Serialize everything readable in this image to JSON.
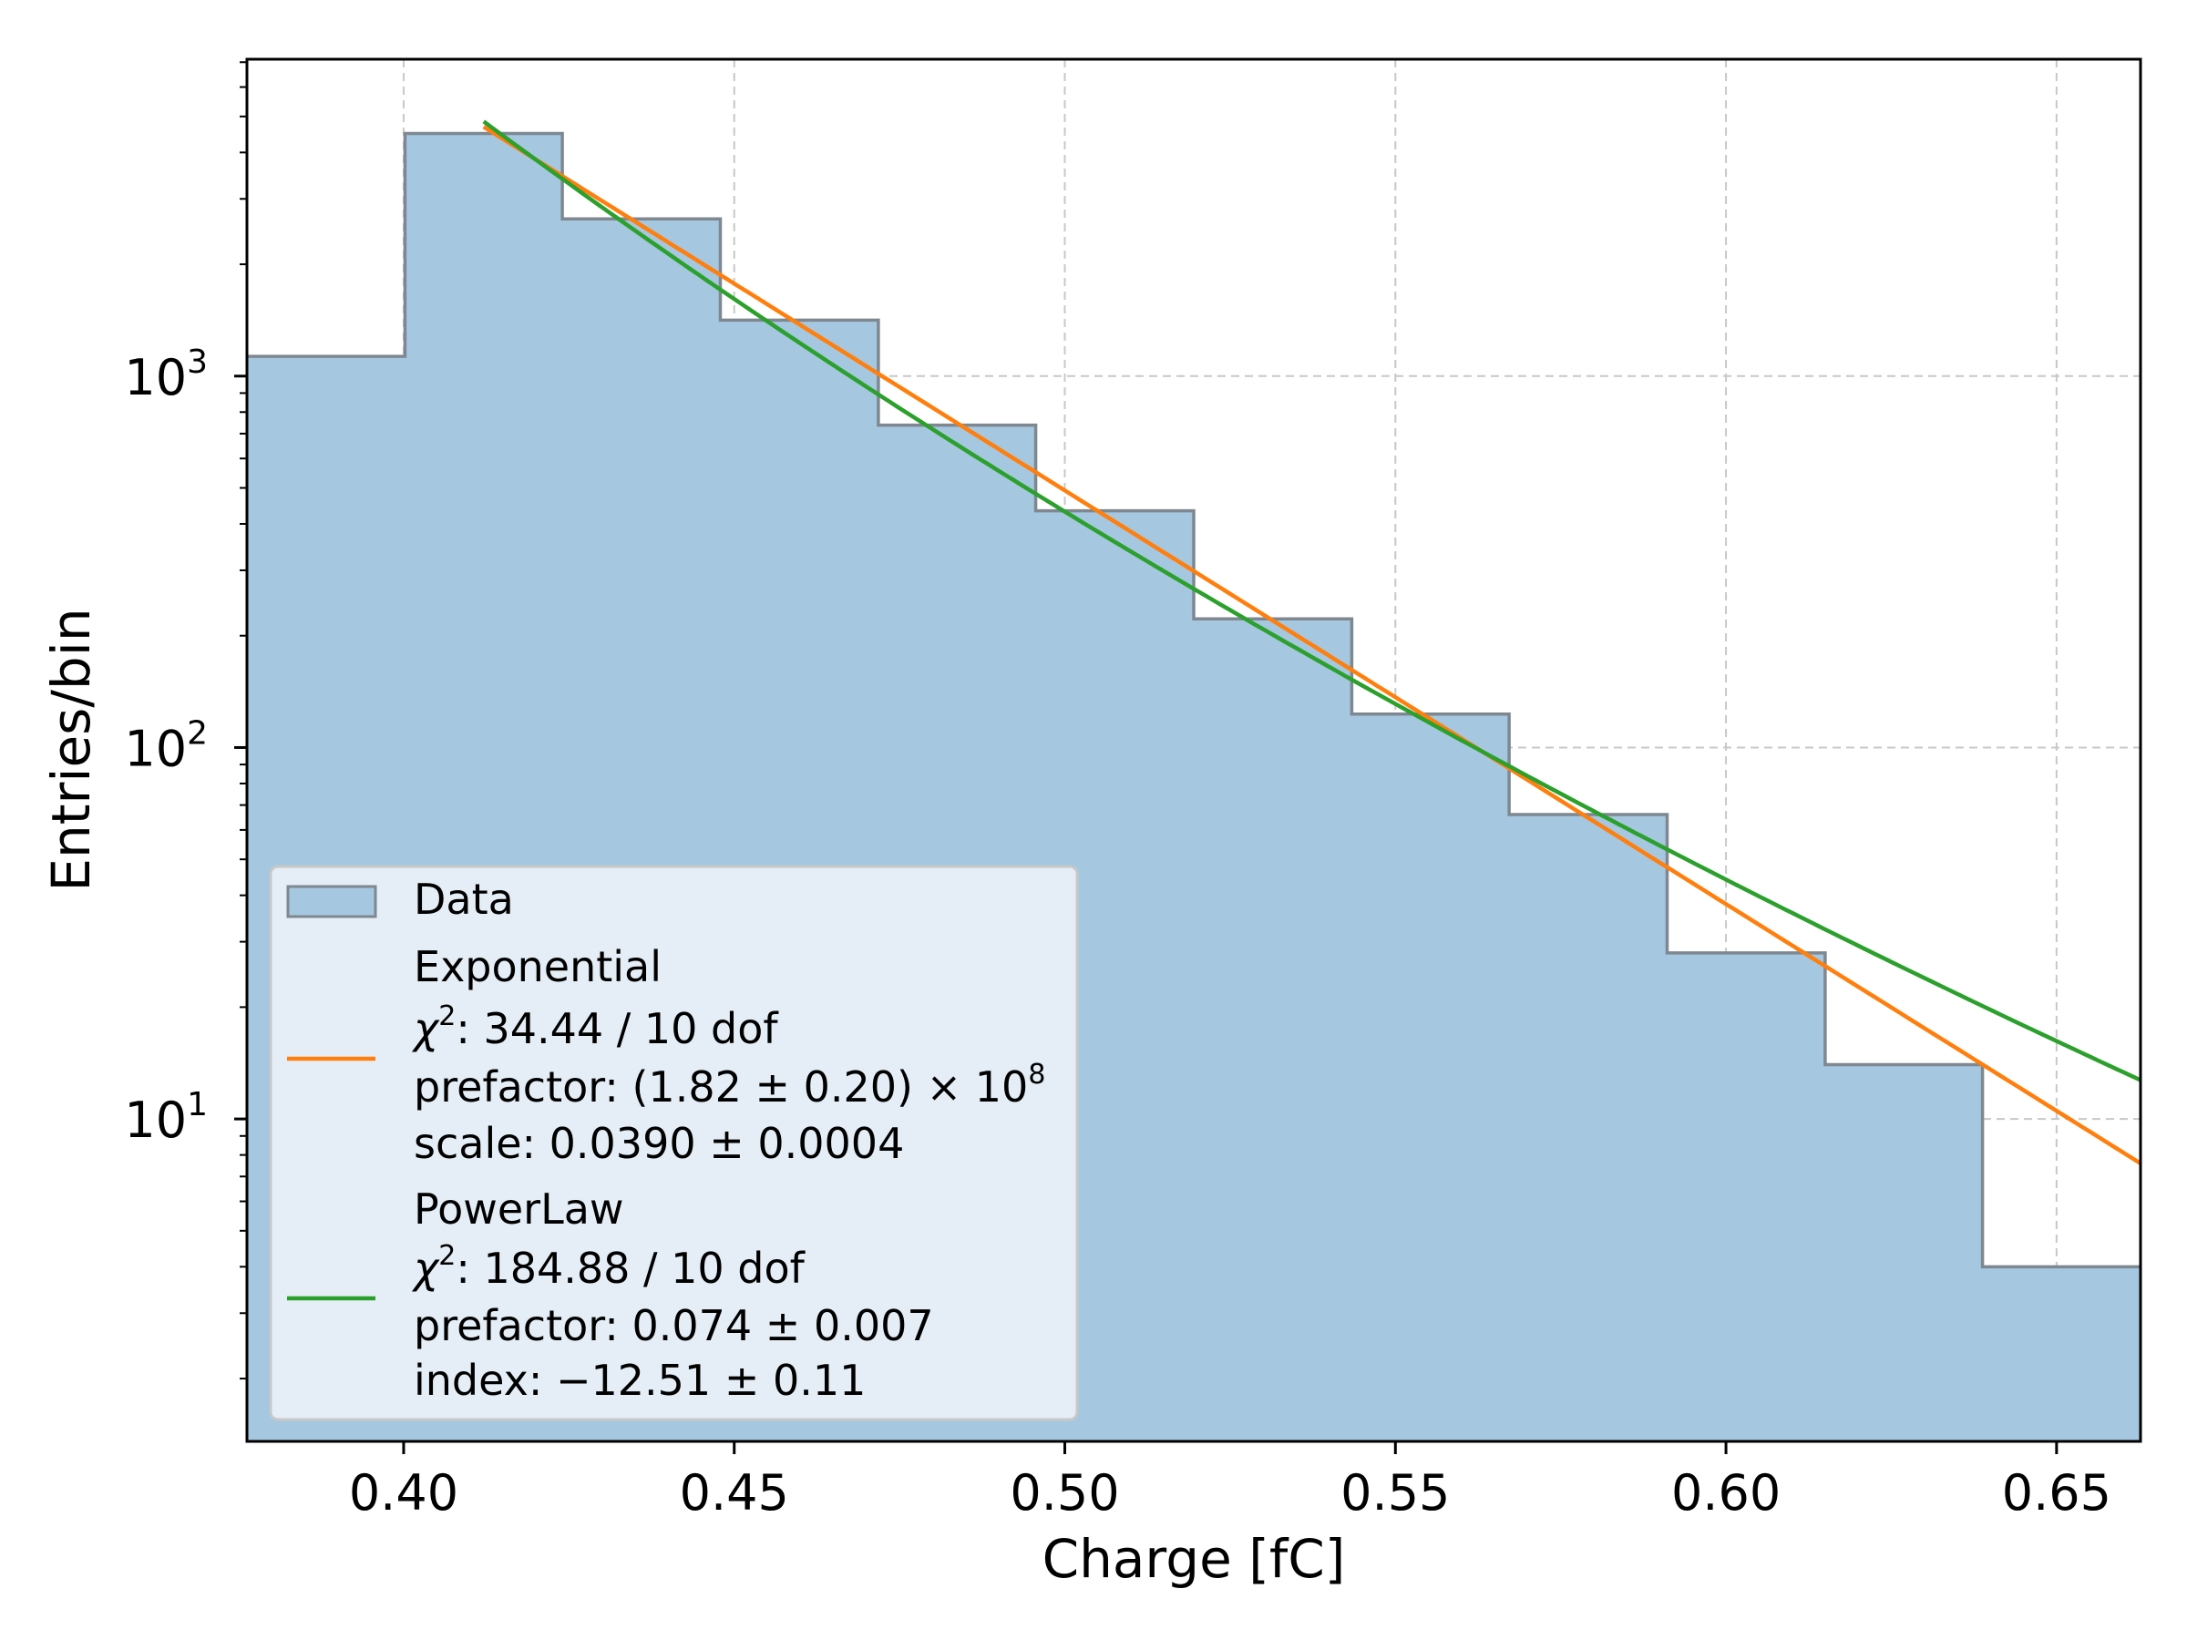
{
  "chart_data": {
    "type": "bar",
    "subtype": "histogram-step-filled",
    "xlabel": "Charge [fC]",
    "ylabel": "Entries/bin",
    "yscale": "log",
    "xlim": [
      0.3763,
      0.6627
    ],
    "ylim": [
      1.355,
      7130
    ],
    "grid": true,
    "legend_position": "lower-left",
    "x_ticks": [
      "0.40",
      "0.45",
      "0.50",
      "0.55",
      "0.60",
      "0.65"
    ],
    "x_tick_values": [
      0.4,
      0.45,
      0.5,
      0.55,
      0.6,
      0.65
    ],
    "y_ticks": [
      {
        "base": "10",
        "exp": "1",
        "value": 10
      },
      {
        "base": "10",
        "exp": "2",
        "value": 100
      },
      {
        "base": "10",
        "exp": "3",
        "value": 1000
      }
    ],
    "bin_edges": [
      0.3763,
      0.4002,
      0.424,
      0.4479,
      0.4718,
      0.4956,
      0.5195,
      0.5434,
      0.5672,
      0.5911,
      0.615,
      0.6388,
      0.6627
    ],
    "values": [
      1130,
      4500,
      2650,
      1415,
      738,
      434,
      222,
      123,
      66,
      28,
      14,
      4
    ],
    "colors": {
      "fill": "#a5c7e0",
      "edge": "#7f8891",
      "exponential": "#ff7f0e",
      "powerlaw": "#2ca02c",
      "grid": "#c8c8c8"
    },
    "series": [
      {
        "name": "Data",
        "kind": "histogram"
      },
      {
        "name": "Exponential",
        "kind": "fit",
        "model": "exponential",
        "prefactor": 182000000.0,
        "scale": 0.039,
        "x_range": [
          0.4121,
          0.6627
        ]
      },
      {
        "name": "PowerLaw",
        "kind": "fit",
        "model": "powerlaw",
        "prefactor": 0.074,
        "index": -12.51,
        "x_range": [
          0.4121,
          0.6627
        ]
      }
    ],
    "legend": {
      "data": "Data",
      "exp": {
        "title": "Exponential",
        "chi_sym": "χ",
        "chi_exp": "2",
        "chi_text": ": 34.44 / 10 dof",
        "prefactor": "prefactor: (1.82 ± 0.20) × 10",
        "prefactor_exp": "8",
        "scale": "scale: 0.0390 ± 0.0004"
      },
      "pow": {
        "title": "PowerLaw",
        "chi_sym": "χ",
        "chi_exp": "2",
        "chi_text": ": 184.88 / 10 dof",
        "prefactor": "prefactor: 0.074 ± 0.007",
        "index": "index: −12.51 ± 0.11"
      }
    }
  }
}
